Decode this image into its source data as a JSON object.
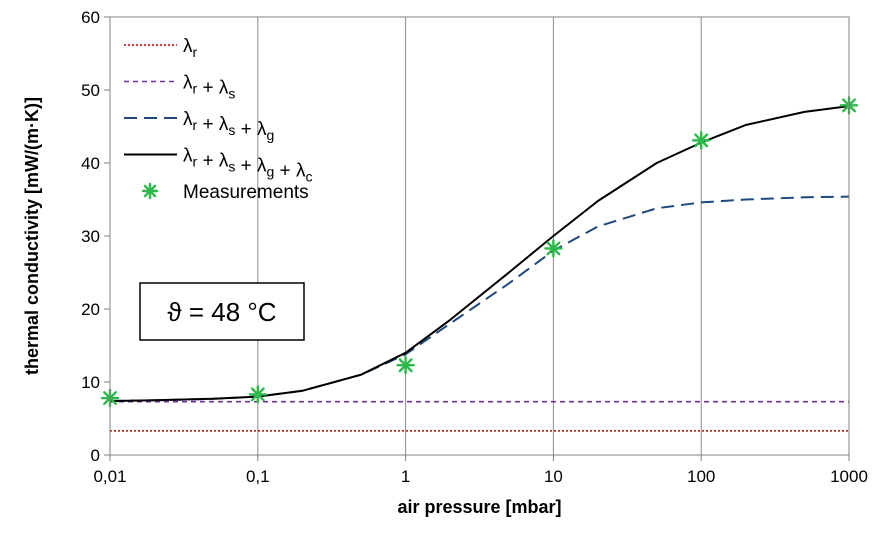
{
  "chart_data": {
    "type": "line",
    "title": "",
    "xlabel": "air pressure [mbar]",
    "ylabel": "thermal conductivity [mW/(m·K)]",
    "x_scale": "log",
    "xlim": [
      0.01,
      1000
    ],
    "ylim": [
      0,
      60
    ],
    "x_ticks": [
      0.01,
      0.1,
      1,
      10,
      100,
      1000
    ],
    "x_tick_labels": [
      "0,01",
      "0,1",
      "1",
      "10",
      "100",
      "1000"
    ],
    "y_ticks": [
      0,
      10,
      20,
      30,
      40,
      50,
      60
    ],
    "y_tick_labels": [
      "0",
      "10",
      "20",
      "30",
      "40",
      "50",
      "60"
    ],
    "grid": "vertical",
    "legend_position": "top-left",
    "annotation": "ϑ = 48 °C",
    "series": [
      {
        "name": "λr",
        "legend": {
          "base": "λ",
          "sub": "r",
          "terms": [
            "r"
          ]
        },
        "color": "#c00000",
        "style": "dotted",
        "x": [
          0.01,
          1000
        ],
        "y": [
          3.3,
          3.3
        ]
      },
      {
        "name": "λr + λs",
        "legend": {
          "base": "λ",
          "terms": [
            "r",
            "s"
          ]
        },
        "color": "#7030a0",
        "style": "short-dash",
        "x": [
          0.01,
          1000
        ],
        "y": [
          7.3,
          7.3
        ]
      },
      {
        "name": "λr + λs + λg",
        "legend": {
          "base": "λ",
          "terms": [
            "r",
            "s",
            "g"
          ]
        },
        "color": "#1f497d",
        "style": "long-dash",
        "x": [
          0.01,
          0.02,
          0.05,
          0.1,
          0.2,
          0.5,
          1,
          2,
          5,
          10,
          20,
          50,
          100,
          200,
          500,
          1000
        ],
        "y": [
          7.4,
          7.5,
          7.7,
          8.0,
          8.8,
          11.0,
          13.8,
          18.0,
          23.5,
          28.0,
          31.3,
          33.8,
          34.6,
          35.0,
          35.3,
          35.4
        ]
      },
      {
        "name": "λr + λs + λg + λc",
        "legend": {
          "base": "λ",
          "terms": [
            "r",
            "s",
            "g",
            "c"
          ]
        },
        "color": "#000000",
        "style": "solid",
        "x": [
          0.01,
          0.02,
          0.05,
          0.1,
          0.2,
          0.5,
          1,
          2,
          5,
          10,
          20,
          50,
          100,
          200,
          500,
          1000
        ],
        "y": [
          7.4,
          7.5,
          7.7,
          8.0,
          8.8,
          11.0,
          14.0,
          18.5,
          25.0,
          30.0,
          34.8,
          40.0,
          42.8,
          45.2,
          47.0,
          47.8
        ]
      },
      {
        "name": "Measurements",
        "color": "#2db84a",
        "style": "marker",
        "x": [
          0.01,
          0.1,
          1,
          10,
          100,
          1000
        ],
        "y": [
          7.8,
          8.3,
          12.3,
          28.3,
          43.1,
          47.9
        ]
      }
    ]
  }
}
